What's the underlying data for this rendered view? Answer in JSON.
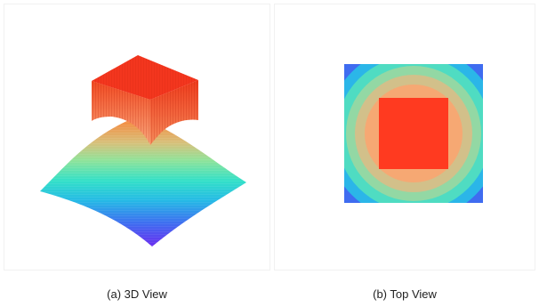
{
  "figure": {
    "panels": [
      {
        "caption": "(a) 3D View"
      },
      {
        "caption": "(b) Top View"
      }
    ]
  },
  "colors": {
    "top_face": "#f3361e",
    "plateau_side": "#f6672c",
    "plateau_side_dark": "#e04a1c",
    "plateau_edge": "#d92b12",
    "ring_colors": [
      "#ff3a20",
      "#f6a873",
      "#d2c08a",
      "#93d8a4",
      "#4fdcc2",
      "#2bb6e8",
      "#3f6cf0",
      "#6033e8"
    ]
  }
}
